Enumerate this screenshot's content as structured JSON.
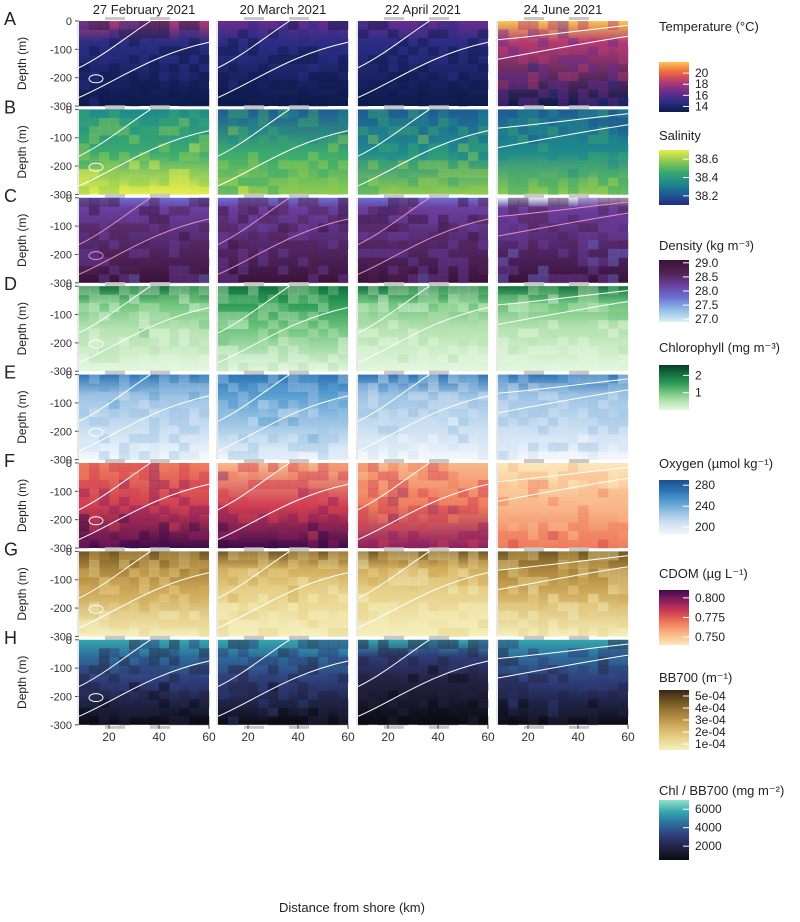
{
  "figure": {
    "xlabel": "Distance from shore (km)",
    "ylabel": "Depth (m)",
    "columns": [
      "27 February 2021",
      "20 March 2021",
      "22 April 2021",
      "24 June 2021"
    ],
    "x_ticks": [
      "20",
      "40",
      "60"
    ],
    "y_ticks": [
      "0",
      "-100",
      "-200",
      "-300"
    ]
  },
  "chart_data": {
    "type": "heatmap",
    "x_axis": {
      "label": "Distance from shore (km)",
      "range": [
        8,
        60
      ],
      "ticks": [
        20,
        40,
        60
      ]
    },
    "y_axis": {
      "label": "Depth (m)",
      "range": [
        -300,
        0
      ],
      "ticks": [
        0,
        -100,
        -200,
        -300
      ]
    },
    "columns": [
      "27 February 2021",
      "20 March 2021",
      "22 April 2021",
      "24 June 2021"
    ],
    "rows": [
      {
        "letter": "A",
        "variable": "Temperature",
        "unit": "(°C)",
        "colorbar_ticks": [
          "20",
          "18",
          "16",
          "14"
        ],
        "colorbar_range": [
          13,
          22
        ],
        "colors": [
          "#0d1b4b",
          "#2c2d84",
          "#6a2c8e",
          "#b43a73",
          "#ee6a3f",
          "#fbc550"
        ],
        "levels": [
          0.15,
          0.12,
          0.12,
          0.55
        ],
        "mode": "strat"
      },
      {
        "letter": "B",
        "variable": "Salinity",
        "unit": "",
        "colorbar_ticks": [
          "38.6",
          "38.4",
          "38.2"
        ],
        "colorbar_range": [
          38.1,
          38.7
        ],
        "colors": [
          "#252d7e",
          "#1f5a95",
          "#1e8a8c",
          "#3aa96f",
          "#8ecb4f",
          "#e6ee4c"
        ],
        "levels": [
          0.62,
          0.5,
          0.45,
          0.35
        ],
        "mode": "deep"
      },
      {
        "letter": "C",
        "variable": "Density",
        "unit": "(kg m⁻³)",
        "colorbar_ticks": [
          "29.0",
          "28.5",
          "28.0",
          "27.5",
          "27.0"
        ],
        "colorbar_range": [
          26.9,
          29.1
        ],
        "colors": [
          "#dbf0f1",
          "#8fbce6",
          "#6c6fd1",
          "#6a3f9e",
          "#51214f",
          "#3a1238"
        ],
        "levels": [
          0.85,
          0.85,
          0.85,
          0.75
        ],
        "mode": "dense"
      },
      {
        "letter": "D",
        "variable": "Chlorophyll",
        "unit": "(mg m⁻³)",
        "colorbar_ticks": [
          "2",
          "1"
        ],
        "colorbar_range": [
          0,
          2.6
        ],
        "colors": [
          "#e4f7df",
          "#b6e2b1",
          "#6ec47c",
          "#2c9a55",
          "#137040",
          "#0b3b23"
        ],
        "levels": [
          0.25,
          0.3,
          0.2,
          0.25
        ],
        "mode": "surface"
      },
      {
        "letter": "E",
        "variable": "Oxygen",
        "unit": "(µmol kg⁻¹)",
        "colorbar_ticks": [
          "280",
          "240",
          "200"
        ],
        "colorbar_range": [
          185,
          290
        ],
        "colors": [
          "#f4f8fd",
          "#d3e3f3",
          "#9dc4e4",
          "#5a9fd1",
          "#2e74b5",
          "#1d4f8a"
        ],
        "levels": [
          0.45,
          0.5,
          0.35,
          0.4
        ],
        "mode": "strat"
      },
      {
        "letter": "F",
        "variable": "CDOM",
        "unit": "(µg L⁻¹)",
        "colorbar_ticks": [
          "0.800",
          "0.775",
          "0.750"
        ],
        "colorbar_range": [
          0.74,
          0.81
        ],
        "colors": [
          "#fde7b8",
          "#f9b98a",
          "#ef7d5d",
          "#d03f52",
          "#8e1f60",
          "#3e0b4b"
        ],
        "levels": [
          0.6,
          0.55,
          0.45,
          0.12
        ],
        "mode": "deep"
      },
      {
        "letter": "G",
        "variable": "BB700",
        "unit": "(m⁻¹)",
        "colorbar_ticks": [
          "5e-04",
          "4e-04",
          "3e-04",
          "2e-04",
          "1e-04"
        ],
        "colorbar_range": [
          5e-05,
          0.00055
        ],
        "colors": [
          "#f5f0bd",
          "#e8d28b",
          "#d1ac5c",
          "#a9823a",
          "#715725",
          "#372614"
        ],
        "levels": [
          0.35,
          0.28,
          0.22,
          0.3
        ],
        "mode": "surface"
      },
      {
        "letter": "H",
        "variable": "Chl / BB700",
        "unit": "(mg m⁻²)",
        "colorbar_ticks": [
          "6000",
          "4000",
          "2000"
        ],
        "colorbar_range": [
          500,
          7000
        ],
        "colors": [
          "#0c0b14",
          "#23213f",
          "#2f3b77",
          "#2e6c9b",
          "#35a6ad",
          "#8fe0c8"
        ],
        "levels": [
          0.3,
          0.35,
          0.25,
          0.35
        ],
        "mode": "surface"
      }
    ],
    "contours": "white isolines on all panels"
  }
}
